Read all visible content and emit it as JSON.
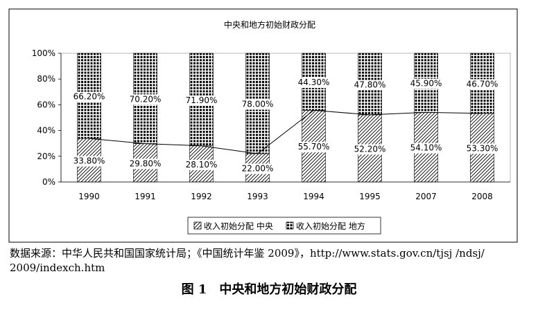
{
  "chart_data": {
    "type": "bar",
    "stacked": "100%",
    "title": "中央和地方初始财政分配",
    "categories": [
      "1990",
      "1991",
      "1992",
      "1993",
      "1994",
      "1995",
      "2007",
      "2008"
    ],
    "series": [
      {
        "name": "收入初始分配 中央",
        "values": [
          33.8,
          29.8,
          28.1,
          22.0,
          55.7,
          52.2,
          54.1,
          53.3
        ],
        "labels": [
          "33.80%",
          "29.80%",
          "28.10%",
          "22.00%",
          "55.70%",
          "52.20%",
          "54.10%",
          "53.30%"
        ]
      },
      {
        "name": "收入初始分配 地方",
        "values": [
          66.2,
          70.2,
          71.9,
          78.0,
          44.3,
          47.8,
          45.9,
          46.7
        ],
        "labels": [
          "66.20%",
          "70.20%",
          "71.90%",
          "78.00%",
          "44.30%",
          "47.80%",
          "45.90%",
          "46.70%"
        ]
      }
    ],
    "line_series": "收入初始分配 中央",
    "yticks": [
      "0%",
      "20%",
      "40%",
      "60%",
      "80%",
      "100%"
    ],
    "ylim": [
      0,
      100
    ],
    "legend_position": "bottom",
    "grid": false
  },
  "source_note": "数据来源：中华人民共和国国家统计局；《中国统计年鉴 2009》，http://www.stats.gov.cn/tjsj /ndsj/ 2009/indexch.htm",
  "figure_caption": "图 1　中央和地方初始财政分配"
}
